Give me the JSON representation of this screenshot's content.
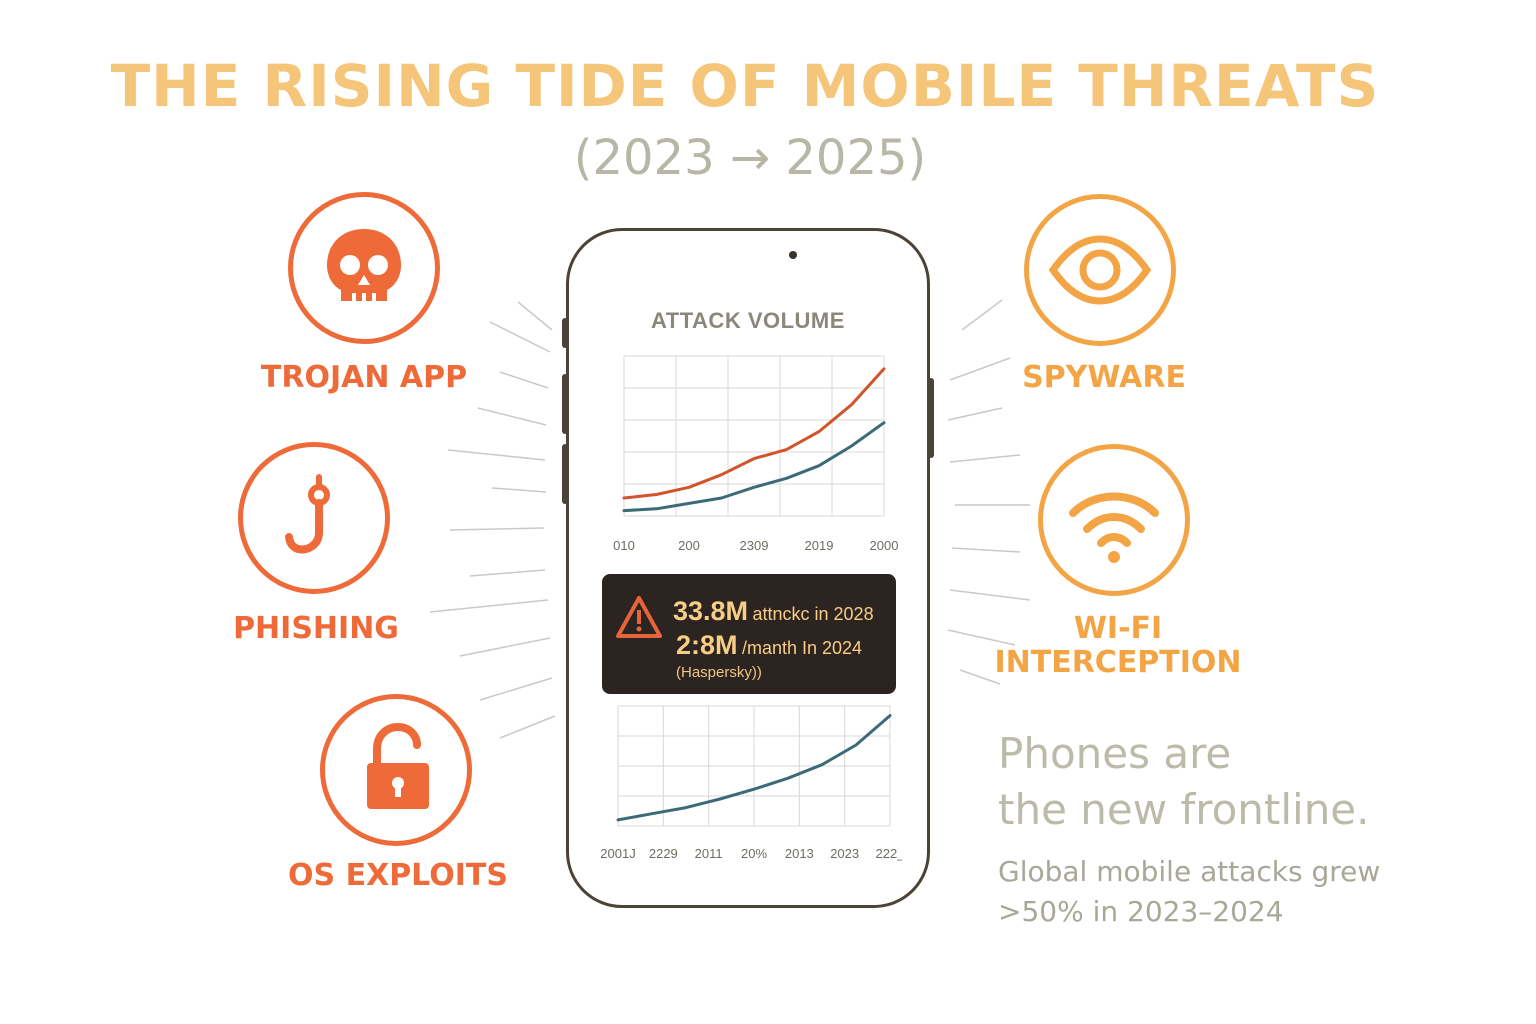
{
  "header": {
    "title": "THE RISING TIDE OF MOBILE THREATS",
    "subtitle": "(2023 → 2025)"
  },
  "threats": {
    "trojan": {
      "label": "TROJAN APP",
      "icon": "skull-icon",
      "color": "#ee6a38"
    },
    "phishing": {
      "label": "PHISHING",
      "icon": "fishing-hook-icon",
      "color": "#ee6a38"
    },
    "os_exploits": {
      "label": "OS EXPLOITS",
      "icon": "open-padlock-icon",
      "color": "#ee6a38"
    },
    "spyware": {
      "label": "SPYWARE",
      "icon": "eye-icon",
      "color": "#f3a545"
    },
    "wifi": {
      "label_line1": "WI-FI",
      "label_line2": "INTERCEPTION",
      "icon": "wifi-icon",
      "color": "#f3a545"
    }
  },
  "phone": {
    "chart_title": "ATTACK VOLUME",
    "alert": {
      "icon": "warning-triangle-icon",
      "line1_value": "33.8M",
      "line1_text": "attnckc in 2028",
      "line2_value": "2:8M",
      "line2_text": "/manth In 2024",
      "source": "(Haspersky))"
    }
  },
  "chart_data": [
    {
      "type": "line",
      "title": "ATTACK VOLUME",
      "x_tick_labels": [
        "010",
        "200",
        "2309",
        "2019",
        "2000"
      ],
      "series": [
        {
          "color": "#d2542c",
          "values": [
            1.0,
            1.2,
            1.6,
            2.3,
            3.2,
            3.7,
            4.7,
            6.2,
            8.2
          ]
        },
        {
          "color": "#3d6a78",
          "values": [
            0.3,
            0.4,
            0.7,
            1.0,
            1.6,
            2.1,
            2.8,
            3.9,
            5.2
          ]
        }
      ],
      "grid": true
    },
    {
      "type": "line",
      "x_tick_labels": [
        "2001J",
        "2229",
        "2011",
        "20%",
        "2013",
        "2023",
        "222_"
      ],
      "series": [
        {
          "color": "#3d6a78",
          "values": [
            0.5,
            1.0,
            1.5,
            2.2,
            3.0,
            3.9,
            5.0,
            6.6,
            9.0
          ]
        }
      ],
      "grid": true
    }
  ],
  "footer": {
    "tagline_line1": "Phones are",
    "tagline_line2": "the new frontline.",
    "stat_line1": "Global mobile attacks grew",
    "stat_line2": ">50% in 2023–2024"
  },
  "colors": {
    "title": "#f5c57a",
    "threat_red": "#ee6a38",
    "threat_orange": "#f3a545",
    "phone_frame": "#4c4338",
    "alert_bg": "#2c2420"
  }
}
